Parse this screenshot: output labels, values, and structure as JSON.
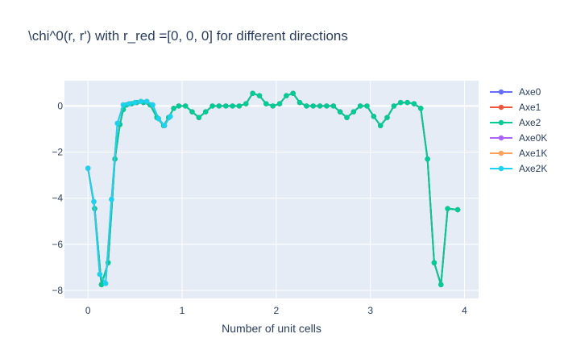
{
  "chart_data": {
    "type": "line",
    "title": "\\chi^0(r, r') with r_red =[0, 0, 0] for different directions",
    "xlabel": "Number of unit cells",
    "ylabel": "",
    "xlim": [
      -0.25,
      4.15
    ],
    "ylim": [
      -8.35,
      1.1
    ],
    "xticks": [
      0,
      1,
      2,
      3,
      4
    ],
    "yticks": [
      0,
      -2,
      -4,
      -6,
      -8
    ],
    "xtick_labels": [
      "0",
      "1",
      "2",
      "3",
      "4"
    ],
    "ytick_labels": [
      "0",
      "−2",
      "−4",
      "−6",
      "−8"
    ],
    "grid": true,
    "legend_position": "right",
    "series": [
      {
        "name": "Axe0",
        "color": "#636efa",
        "x": [
          0.0,
          0.0714,
          0.1429,
          0.2143,
          0.2857,
          0.3393,
          0.375,
          0.4107,
          0.4643,
          0.5179,
          0.5893,
          0.6607,
          0.7321,
          0.8036,
          0.8571,
          0.9107,
          0.9643,
          1.0357,
          1.1071,
          1.1786,
          1.25,
          1.3214,
          1.3929,
          1.4643,
          1.5357,
          1.6071,
          1.6786,
          1.75,
          1.8214,
          1.8929,
          1.9643,
          2.0357,
          2.1071,
          2.1786,
          2.25,
          2.3214,
          2.3929,
          2.4643,
          2.5357,
          2.6071,
          2.6786,
          2.75,
          2.8214,
          2.8929,
          2.9643,
          3.0357,
          3.1071,
          3.1786,
          3.25,
          3.3214,
          3.3929,
          3.4643,
          3.5357,
          3.6071,
          3.6786,
          3.75,
          3.8214,
          3.9286
        ],
        "y": [
          -2.7,
          -4.45,
          -7.75,
          -6.8,
          -2.3,
          -0.8,
          -0.15,
          0.05,
          0.1,
          0.15,
          0.15,
          0.05,
          -0.5,
          -0.85,
          -0.5,
          -0.1,
          0.0,
          0.0,
          -0.25,
          -0.5,
          -0.25,
          0.0,
          0.0,
          0.0,
          0.0,
          0.0,
          0.1,
          0.55,
          0.45,
          0.1,
          0.0,
          0.1,
          0.45,
          0.55,
          0.15,
          0.0,
          0.0,
          0.0,
          0.0,
          0.0,
          -0.25,
          -0.5,
          -0.25,
          0.0,
          0.0,
          -0.45,
          -0.85,
          -0.5,
          0.0,
          0.15,
          0.15,
          0.1,
          -0.1,
          -2.3,
          -6.8,
          -7.75,
          -4.45,
          -4.5
        ]
      },
      {
        "name": "Axe1",
        "color": "#ef553b",
        "x": [
          0.0,
          0.0714,
          0.1429,
          0.2143,
          0.2857,
          0.3393,
          0.375,
          0.4107,
          0.4643,
          0.5179,
          0.5893,
          0.6607,
          0.7321,
          0.8036,
          0.8571,
          0.9107,
          0.9643,
          1.0357,
          1.1071,
          1.1786,
          1.25,
          1.3214,
          1.3929,
          1.4643,
          1.5357,
          1.6071,
          1.6786,
          1.75,
          1.8214,
          1.8929,
          1.9643,
          2.0357,
          2.1071,
          2.1786,
          2.25,
          2.3214,
          2.3929,
          2.4643,
          2.5357,
          2.6071,
          2.6786,
          2.75,
          2.8214,
          2.8929,
          2.9643,
          3.0357,
          3.1071,
          3.1786,
          3.25,
          3.3214,
          3.3929,
          3.4643,
          3.5357,
          3.6071,
          3.6786,
          3.75,
          3.8214,
          3.9286
        ],
        "y": [
          -2.7,
          -4.45,
          -7.75,
          -6.8,
          -2.3,
          -0.8,
          -0.15,
          0.05,
          0.1,
          0.15,
          0.15,
          0.05,
          -0.5,
          -0.85,
          -0.5,
          -0.1,
          0.0,
          0.0,
          -0.25,
          -0.5,
          -0.25,
          0.0,
          0.0,
          0.0,
          0.0,
          0.0,
          0.1,
          0.55,
          0.45,
          0.1,
          0.0,
          0.1,
          0.45,
          0.55,
          0.15,
          0.0,
          0.0,
          0.0,
          0.0,
          0.0,
          -0.25,
          -0.5,
          -0.25,
          0.0,
          0.0,
          -0.45,
          -0.85,
          -0.5,
          0.0,
          0.15,
          0.15,
          0.1,
          -0.1,
          -2.3,
          -6.8,
          -7.75,
          -4.45,
          -4.5
        ]
      },
      {
        "name": "Axe2",
        "color": "#00cc96",
        "x": [
          0.0,
          0.0714,
          0.1429,
          0.2143,
          0.2857,
          0.3393,
          0.375,
          0.4107,
          0.4643,
          0.5179,
          0.5893,
          0.6607,
          0.7321,
          0.8036,
          0.8571,
          0.9107,
          0.9643,
          1.0357,
          1.1071,
          1.1786,
          1.25,
          1.3214,
          1.3929,
          1.4643,
          1.5357,
          1.6071,
          1.6786,
          1.75,
          1.8214,
          1.8929,
          1.9643,
          2.0357,
          2.1071,
          2.1786,
          2.25,
          2.3214,
          2.3929,
          2.4643,
          2.5357,
          2.6071,
          2.6786,
          2.75,
          2.8214,
          2.8929,
          2.9643,
          3.0357,
          3.1071,
          3.1786,
          3.25,
          3.3214,
          3.3929,
          3.4643,
          3.5357,
          3.6071,
          3.6786,
          3.75,
          3.8214,
          3.9286
        ],
        "y": [
          -2.7,
          -4.45,
          -7.75,
          -6.8,
          -2.3,
          -0.8,
          -0.15,
          0.05,
          0.1,
          0.15,
          0.15,
          0.05,
          -0.5,
          -0.85,
          -0.5,
          -0.1,
          0.0,
          0.0,
          -0.25,
          -0.5,
          -0.25,
          0.0,
          0.0,
          0.0,
          0.0,
          0.0,
          0.1,
          0.55,
          0.45,
          0.1,
          0.0,
          0.1,
          0.45,
          0.55,
          0.15,
          0.0,
          0.0,
          0.0,
          0.0,
          0.0,
          -0.25,
          -0.5,
          -0.25,
          0.0,
          0.0,
          -0.45,
          -0.85,
          -0.5,
          0.0,
          0.15,
          0.15,
          0.1,
          -0.1,
          -2.3,
          -6.8,
          -7.75,
          -4.45,
          -4.5
        ]
      },
      {
        "name": "Axe0K",
        "color": "#ab63fa",
        "x": [
          0.0,
          0.0625,
          0.125,
          0.1875,
          0.25,
          0.3125,
          0.375,
          0.4375,
          0.5,
          0.5625,
          0.625,
          0.6875,
          0.75,
          0.8125,
          0.875
        ],
        "y": [
          -2.7,
          -4.15,
          -7.3,
          -7.7,
          -4.05,
          -0.75,
          0.05,
          0.1,
          0.15,
          0.2,
          0.2,
          0.05,
          -0.55,
          -0.85,
          -0.45
        ]
      },
      {
        "name": "Axe1K",
        "color": "#ffa15a",
        "x": [
          0.0,
          0.0625,
          0.125,
          0.1875,
          0.25,
          0.3125,
          0.375,
          0.4375,
          0.5,
          0.5625,
          0.625,
          0.6875,
          0.75,
          0.8125,
          0.875
        ],
        "y": [
          -2.7,
          -4.15,
          -7.3,
          -7.7,
          -4.05,
          -0.75,
          0.05,
          0.1,
          0.15,
          0.2,
          0.2,
          0.05,
          -0.55,
          -0.85,
          -0.45
        ]
      },
      {
        "name": "Axe2K",
        "color": "#19d3f3",
        "x": [
          0.0,
          0.0625,
          0.125,
          0.1875,
          0.25,
          0.3125,
          0.375,
          0.4375,
          0.5,
          0.5625,
          0.625,
          0.6875,
          0.75,
          0.8125,
          0.875
        ],
        "y": [
          -2.7,
          -4.15,
          -7.3,
          -7.7,
          -4.05,
          -0.75,
          0.05,
          0.1,
          0.15,
          0.2,
          0.2,
          0.05,
          -0.55,
          -0.85,
          -0.45
        ]
      }
    ]
  },
  "colors": {
    "plot_bg": "#e5ecf6",
    "grid": "#ffffff",
    "text": "#2a3f5f"
  }
}
